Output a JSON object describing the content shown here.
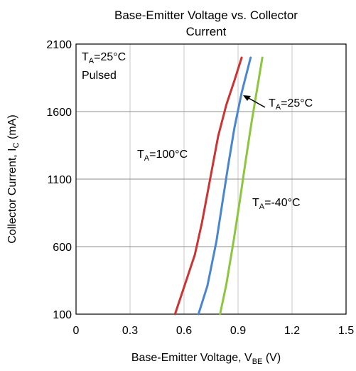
{
  "chart_data": {
    "type": "line",
    "title_lines": [
      "Base-Emitter Voltage vs. Collector",
      "Current"
    ],
    "xlabel": {
      "main": "Base-Emitter Voltage, V",
      "sub": "BE",
      "tail": " (V)"
    },
    "ylabel": {
      "main": "Collector Current, I",
      "sub": "C",
      "tail": " (mA)"
    },
    "xlim": [
      0,
      1.5
    ],
    "ylim": [
      100,
      2100
    ],
    "xticks": [
      0,
      0.3,
      0.6,
      0.9,
      1.2,
      1.5
    ],
    "xtick_labels": [
      "0",
      "0.3",
      "0.6",
      "0.9",
      "1.2",
      "1.5"
    ],
    "yticks": [
      100,
      600,
      1100,
      1600,
      2100
    ],
    "ytick_labels": [
      "100",
      "600",
      "1100",
      "1600",
      "2100"
    ],
    "grid": true,
    "condition_note": {
      "line1_main": "T",
      "line1_sub": "A",
      "line1_tail": "=25°C",
      "line2": "Pulsed"
    },
    "series": [
      {
        "label_main": "T",
        "label_sub": "A",
        "label_tail": "=100°C",
        "color": "#cc3333",
        "points": [
          [
            0.55,
            100
          ],
          [
            0.6,
            300
          ],
          [
            0.66,
            540
          ],
          [
            0.7,
            780
          ],
          [
            0.745,
            1100
          ],
          [
            0.79,
            1420
          ],
          [
            0.835,
            1650
          ],
          [
            0.88,
            1830
          ],
          [
            0.92,
            2000
          ]
        ]
      },
      {
        "label_main": "T",
        "label_sub": "A",
        "label_tail": "=25°C",
        "color": "#4a86d0",
        "points": [
          [
            0.68,
            100
          ],
          [
            0.73,
            310
          ],
          [
            0.78,
            640
          ],
          [
            0.81,
            900
          ],
          [
            0.845,
            1200
          ],
          [
            0.88,
            1480
          ],
          [
            0.92,
            1740
          ],
          [
            0.97,
            2000
          ]
        ]
      },
      {
        "label_main": "T",
        "label_sub": "A",
        "label_tail": "=-40°C",
        "color": "#8cc63f",
        "points": [
          [
            0.8,
            100
          ],
          [
            0.835,
            320
          ],
          [
            0.875,
            640
          ],
          [
            0.91,
            940
          ],
          [
            0.945,
            1260
          ],
          [
            0.975,
            1520
          ],
          [
            1.005,
            1760
          ],
          [
            1.035,
            2000
          ]
        ]
      }
    ]
  }
}
